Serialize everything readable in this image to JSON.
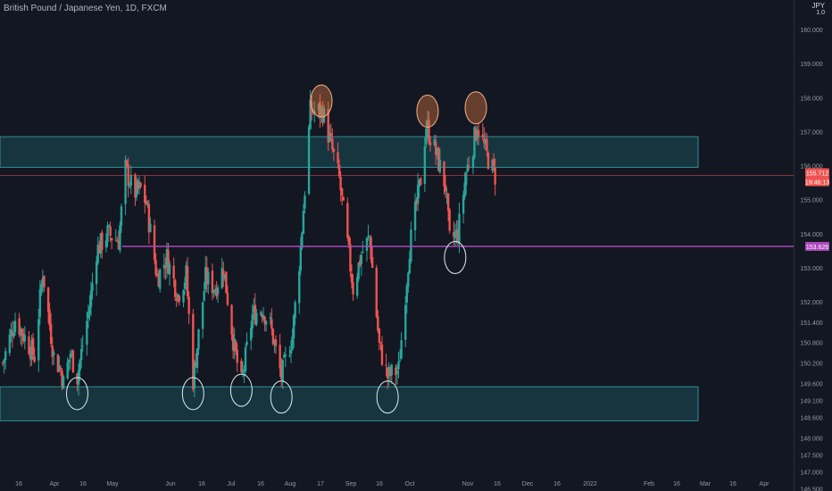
{
  "header": {
    "symbol_title": "British Pound / Japanese Yen, 1D, FXCM"
  },
  "axis_currency": {
    "code": "JPY",
    "multiplier": "1.0"
  },
  "colors": {
    "background": "#131722",
    "up": "#26a69a",
    "down": "#ef5350",
    "zone_fill": "#1b4f57",
    "zone_stroke": "#2f8f95",
    "support_line": "#ab47bc",
    "price_line": "#ef5350",
    "axis_text": "#9598a1",
    "high_marker": "#e07a3f",
    "low_marker": "#d7efe9"
  },
  "chart_data": {
    "type": "candlestick",
    "title": "British Pound / Japanese Yen, 1D, FXCM",
    "timeframe": "1D",
    "ylim": [
      146.7,
      160.6
    ],
    "y_ticks": [
      "160.000",
      "159.000",
      "158.000",
      "157.000",
      "156.000",
      "155.000",
      "154.000",
      "153.000",
      "152.000",
      "151.400",
      "150.800",
      "150.200",
      "149.600",
      "149.100",
      "148.600",
      "148.000",
      "147.500",
      "147.000",
      "146.500"
    ],
    "x_ticks": [
      "16",
      "Apr",
      "16",
      "May",
      "Jun",
      "16",
      "Jul",
      "16",
      "Aug",
      "17",
      "Sep",
      "16",
      "Oct",
      "Nov",
      "16",
      "Dec",
      "16",
      "2022",
      "Jan",
      "Feb",
      "16",
      "Mar",
      "16",
      "Apr"
    ],
    "last_price": "155.712",
    "countdown": "19:46:13",
    "support_price": "153.626",
    "zones": [
      {
        "name": "resistance",
        "top": 156.85,
        "bottom": 155.95
      },
      {
        "name": "support",
        "top": 149.5,
        "bottom": 148.5
      }
    ],
    "grid": false,
    "legend": "none",
    "anchor_closes": [
      {
        "date": "2021-03-03",
        "close": 150.2
      },
      {
        "date": "2021-03-12",
        "close": 151.5
      },
      {
        "date": "2021-03-26",
        "close": 150.4
      },
      {
        "date": "2021-04-01",
        "close": 152.9
      },
      {
        "date": "2021-04-09",
        "close": 150.4
      },
      {
        "date": "2021-04-14",
        "close": 150.0
      },
      {
        "date": "2021-04-16",
        "close": 149.6
      },
      {
        "date": "2021-04-21",
        "close": 150.5
      },
      {
        "date": "2021-04-26",
        "close": 149.8
      },
      {
        "date": "2021-05-05",
        "close": 151.9
      },
      {
        "date": "2021-05-10",
        "close": 153.5
      },
      {
        "date": "2021-05-18",
        "close": 154.0
      },
      {
        "date": "2021-05-26",
        "close": 153.8
      },
      {
        "date": "2021-05-31",
        "close": 155.9
      },
      {
        "date": "2021-06-06",
        "close": 155.2
      },
      {
        "date": "2021-06-11",
        "close": 155.3
      },
      {
        "date": "2021-06-15",
        "close": 154.9
      },
      {
        "date": "2021-06-23",
        "close": 152.7
      },
      {
        "date": "2021-06-30",
        "close": 153.3
      },
      {
        "date": "2021-07-08",
        "close": 152.2
      },
      {
        "date": "2021-07-14",
        "close": 152.8
      },
      {
        "date": "2021-07-19",
        "close": 149.7
      },
      {
        "date": "2021-07-28",
        "close": 152.7
      },
      {
        "date": "2021-08-04",
        "close": 152.4
      },
      {
        "date": "2021-08-10",
        "close": 153.0
      },
      {
        "date": "2021-08-18",
        "close": 150.6
      },
      {
        "date": "2021-08-23",
        "close": 149.6
      },
      {
        "date": "2021-08-31",
        "close": 151.6
      },
      {
        "date": "2021-09-07",
        "close": 151.8
      },
      {
        "date": "2021-09-13",
        "close": 151.3
      },
      {
        "date": "2021-09-21",
        "close": 149.8
      },
      {
        "date": "2021-09-29",
        "close": 151.0
      },
      {
        "date": "2021-10-05",
        "close": 153.6
      },
      {
        "date": "2021-10-12",
        "close": 157.6
      },
      {
        "date": "2021-10-21",
        "close": 157.6
      },
      {
        "date": "2021-11-02",
        "close": 155.6
      },
      {
        "date": "2021-11-12",
        "close": 152.4
      },
      {
        "date": "2021-11-18",
        "close": 153.4
      },
      {
        "date": "2021-11-24",
        "close": 153.9
      },
      {
        "date": "2021-12-01",
        "close": 150.7
      },
      {
        "date": "2021-12-07",
        "close": 149.8
      },
      {
        "date": "2021-12-15",
        "close": 150.0
      },
      {
        "date": "2021-12-23",
        "close": 153.6
      },
      {
        "date": "2021-12-31",
        "close": 155.6
      },
      {
        "date": "2022-01-04",
        "close": 157.2
      },
      {
        "date": "2022-01-10",
        "close": 156.5
      },
      {
        "date": "2022-01-18",
        "close": 155.4
      },
      {
        "date": "2022-01-21",
        "close": 153.8
      },
      {
        "date": "2022-01-27",
        "close": 154.0
      },
      {
        "date": "2022-02-02",
        "close": 155.8
      },
      {
        "date": "2022-02-07",
        "close": 156.6
      },
      {
        "date": "2022-02-10",
        "close": 157.2
      },
      {
        "date": "2022-02-17",
        "close": 156.3
      },
      {
        "date": "2022-02-23",
        "close": 155.7
      }
    ],
    "circled_highs": [
      {
        "date": "2021-10-20",
        "price": 157.9
      },
      {
        "date": "2022-01-05",
        "price": 157.6
      },
      {
        "date": "2022-02-09",
        "price": 157.7
      }
    ],
    "circled_lows": [
      {
        "date": "2021-04-26",
        "price": 149.3
      },
      {
        "date": "2021-07-19",
        "price": 149.3
      },
      {
        "date": "2021-08-23",
        "price": 149.4
      },
      {
        "date": "2021-09-21",
        "price": 149.2
      },
      {
        "date": "2021-12-07",
        "price": 149.2
      },
      {
        "date": "2022-01-25",
        "price": 153.3
      }
    ]
  }
}
